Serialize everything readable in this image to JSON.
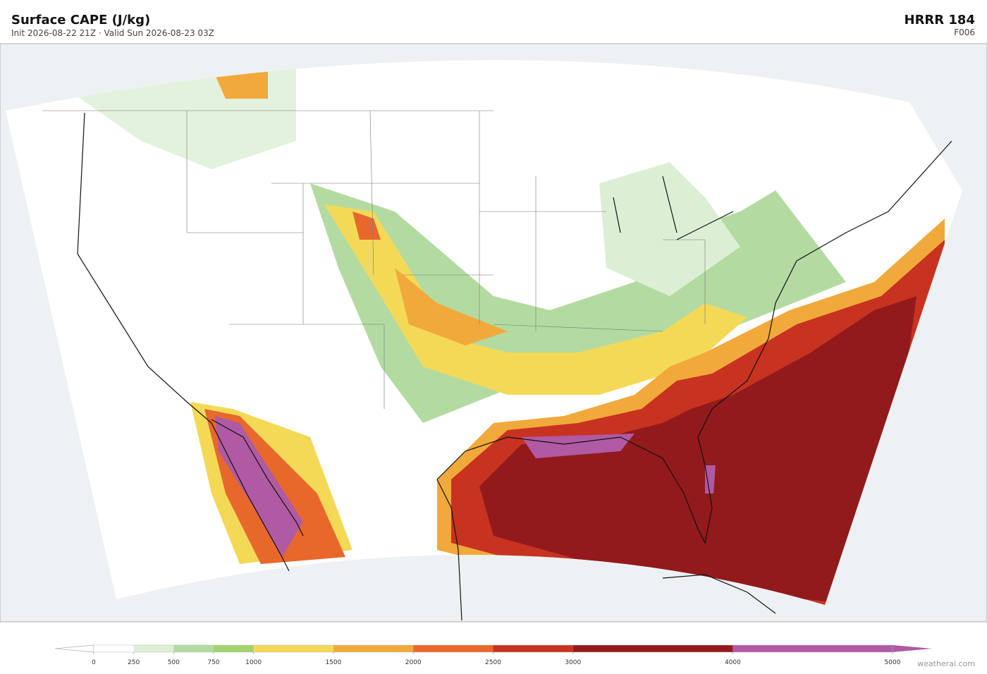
{
  "header": {
    "title": "Surface CAPE  (J/kg)",
    "subtitle": "Init 2026-08-22 21Z  ·  Valid Sun 2026-08-23 03Z",
    "model": "HRRR  184",
    "forecast_hour": "F006"
  },
  "colorbar": {
    "levels": [
      0,
      250,
      500,
      750,
      1000,
      1500,
      2000,
      2500,
      3000,
      4000,
      5000
    ],
    "colors": [
      "#ffffff",
      "#dcefd5",
      "#b3dba1",
      "#a3d36e",
      "#f4d957",
      "#f2a93b",
      "#e8682b",
      "#c83220",
      "#921a1c",
      "#b05aa3"
    ],
    "under_color": "#ffffff",
    "over_color": "#b05aa3"
  },
  "credit": "weatherai.com"
}
